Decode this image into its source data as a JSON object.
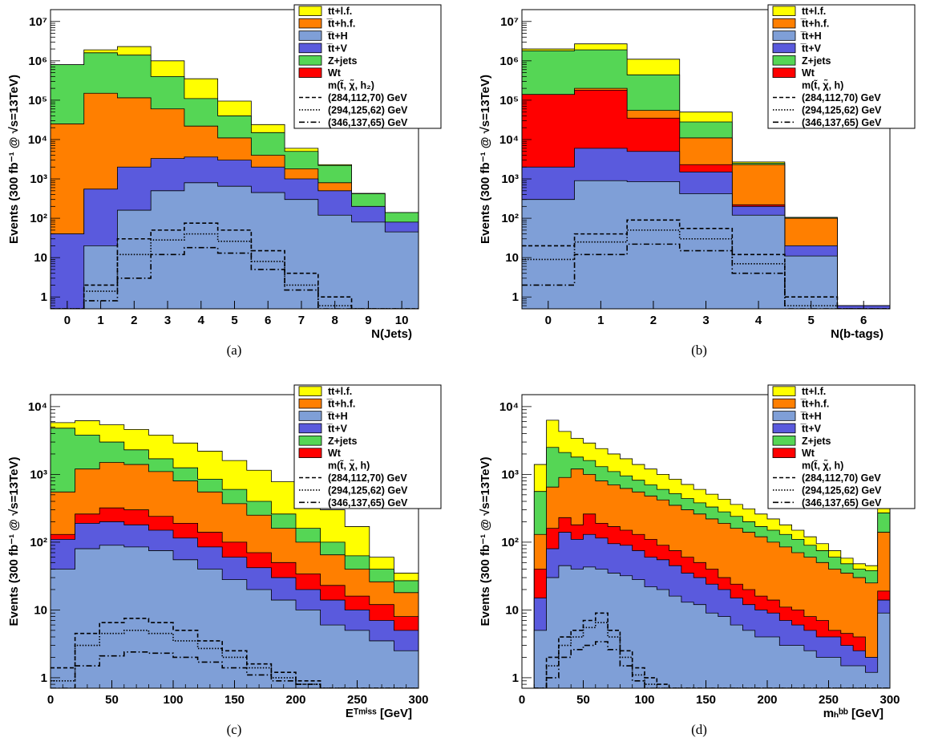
{
  "colors": {
    "tt_lf": "#ffff00",
    "tt_hf": "#ff7f00",
    "ttH": "#7f9fd7",
    "ttV": "#5a5add",
    "Zjets": "#55d655",
    "Wt": "#ff0000"
  },
  "chart_data": [
    {
      "id": "a",
      "type": "bar",
      "caption": "(a)",
      "title": "",
      "xlabel": "N(Jets)",
      "ylabel": "Events (300 fb⁻¹ @ √s=13TeV)",
      "ylog": true,
      "xlim": [
        -0.5,
        10.5
      ],
      "ylim": [
        0.5,
        20000000
      ],
      "xticks": [
        0,
        1,
        2,
        3,
        4,
        5,
        6,
        7,
        8,
        9,
        10
      ],
      "xtick_labels": [
        "0",
        "1",
        "2",
        "3",
        "4",
        "5",
        "6",
        "7",
        "8",
        "9",
        "10"
      ],
      "yticks": [
        1,
        10,
        100,
        1000,
        10000,
        100000,
        1000000,
        10000000
      ],
      "ytick_labels": [
        "1",
        "10",
        "10²",
        "10³",
        "10⁴",
        "10⁵",
        "10⁶",
        "10⁷"
      ],
      "bin_edges": [
        -0.5,
        0.5,
        1.5,
        2.5,
        3.5,
        4.5,
        5.5,
        6.5,
        7.5,
        8.5,
        9.5,
        10.5
      ],
      "stack_cumulative": {
        "Wt": [
          40,
          550,
          1400,
          2500,
          3000,
          2000,
          1100,
          550,
          200,
          80,
          35
        ],
        "ttV": [
          40,
          550,
          2000,
          3300,
          3600,
          3000,
          2000,
          1000,
          500,
          200,
          80
        ],
        "ttH": [
          0,
          20,
          160,
          500,
          800,
          650,
          450,
          300,
          120,
          80,
          45
        ],
        "Zjets": [
          800000,
          1600000,
          1400000,
          400000,
          110000,
          40000,
          15000,
          5000,
          2200,
          420,
          140
        ],
        "tt_hf": [
          25000,
          150000,
          115000,
          60000,
          22000,
          11000,
          4000,
          1800,
          800,
          180,
          70
        ],
        "tt_lf": [
          800000,
          1900000,
          2300000,
          1000000,
          350000,
          95000,
          24000,
          6000,
          2300,
          430,
          140
        ]
      },
      "signal_lines": [
        {
          "name": "(284,112,70) GeV",
          "style": "dashed",
          "values": [
            0.4,
            2,
            30,
            50,
            75,
            50,
            15,
            4,
            1,
            0.3,
            0.3
          ]
        },
        {
          "name": "(294,125,62) GeV",
          "style": "dotted",
          "values": [
            0.3,
            1.4,
            12,
            28,
            40,
            26,
            8,
            2,
            0.6,
            0.2,
            0.2
          ]
        },
        {
          "name": "(346,137,65) GeV",
          "style": "dashdot",
          "values": [
            0.2,
            0.8,
            3,
            12,
            18,
            13,
            5,
            1.5,
            0.4,
            0.2,
            0.2
          ]
        }
      ],
      "legend": {
        "position": "top-right",
        "entries": [
          "tt+l.f.",
          "t̅t+h.f.",
          "t̅t+H",
          "t̅t+V",
          "Z+jets",
          "Wt"
        ],
        "signal_header": "m(t̃, χ̃, h₂)",
        "signal_entries": [
          "(284,112,70) GeV",
          "(294,125,62) GeV",
          "(346,137,65) GeV"
        ]
      }
    },
    {
      "id": "b",
      "type": "bar",
      "caption": "(b)",
      "title": "",
      "xlabel": "N(b-tags)",
      "ylabel": "Events (300 fb⁻¹ @ √s=13TeV)",
      "ylog": true,
      "xlim": [
        -0.5,
        6.5
      ],
      "ylim": [
        0.5,
        20000000
      ],
      "xticks": [
        0,
        1,
        2,
        3,
        4,
        5,
        6
      ],
      "xtick_labels": [
        "0",
        "1",
        "2",
        "3",
        "4",
        "5",
        "6"
      ],
      "yticks": [
        1,
        10,
        100,
        1000,
        10000,
        100000,
        1000000,
        10000000
      ],
      "ytick_labels": [
        "1",
        "10",
        "10²",
        "10³",
        "10⁴",
        "10⁵",
        "10⁶",
        "10⁷"
      ],
      "bin_edges": [
        -0.5,
        0.5,
        1.5,
        2.5,
        3.5,
        4.5,
        5.5,
        6.5
      ],
      "stack_cumulative": {
        "ttH": [
          300,
          900,
          850,
          420,
          120,
          11,
          0.5
        ],
        "ttV": [
          2000,
          6000,
          5000,
          1500,
          200,
          20,
          0.6
        ],
        "Wt": [
          140000,
          180000,
          35000,
          2300,
          220,
          20,
          0.6
        ],
        "tt_hf": [
          140000,
          200000,
          55000,
          11000,
          2300,
          100,
          0.6
        ],
        "Zjets": [
          1800000,
          1900000,
          440000,
          28000,
          2500,
          105,
          0.6
        ],
        "tt_lf": [
          2000000,
          2700000,
          1100000,
          50000,
          2700,
          105,
          0.6
        ]
      },
      "signal_lines": [
        {
          "name": "(284,112,70) GeV",
          "style": "dashed",
          "values": [
            20,
            40,
            90,
            55,
            12,
            1,
            0.3
          ]
        },
        {
          "name": "(294,125,62) GeV",
          "style": "dotted",
          "values": [
            9,
            25,
            50,
            30,
            7,
            0.6,
            0.3
          ]
        },
        {
          "name": "(346,137,65) GeV",
          "style": "dashdot",
          "values": [
            2,
            12,
            22,
            15,
            4,
            0.3,
            0.3
          ]
        }
      ],
      "legend": {
        "position": "top-right",
        "entries": [
          "tt+l.f.",
          "t̅t+h.f.",
          "t̅t+H",
          "t̅t+V",
          "Z+jets",
          "Wt"
        ],
        "signal_header": "m(t̃, χ̃, h)",
        "signal_entries": [
          "(284,112,70) GeV",
          "(294,125,62) GeV",
          "(346,137,65) GeV"
        ]
      }
    },
    {
      "id": "c",
      "type": "bar",
      "caption": "(c)",
      "title": "",
      "xlabel": "Eᵀᵐⁱˢˢ [GeV]",
      "ylabel": "Events (300 fb⁻¹ @ √s=13TeV)",
      "ylog": true,
      "xlim": [
        0,
        300
      ],
      "ylim": [
        0.7,
        15000
      ],
      "xticks": [
        0,
        50,
        100,
        150,
        200,
        250,
        300
      ],
      "xtick_labels": [
        "0",
        "50",
        "100",
        "150",
        "200",
        "250",
        "300"
      ],
      "yticks": [
        1,
        10,
        100,
        1000,
        10000
      ],
      "ytick_labels": [
        "1",
        "10",
        "10²",
        "10³",
        "10⁴"
      ],
      "bin_edges": [
        0,
        20,
        40,
        60,
        80,
        100,
        120,
        140,
        160,
        180,
        200,
        220,
        240,
        260,
        280,
        300
      ],
      "stack_cumulative": {
        "ttH": [
          40,
          80,
          90,
          85,
          75,
          55,
          40,
          28,
          20,
          14,
          10,
          6,
          5,
          3.5,
          2.5
        ],
        "ttV": [
          110,
          190,
          200,
          180,
          150,
          115,
          85,
          60,
          42,
          30,
          20,
          14,
          10,
          7,
          5
        ],
        "Wt": [
          130,
          260,
          320,
          300,
          240,
          190,
          140,
          100,
          70,
          50,
          34,
          23,
          16,
          12,
          8
        ],
        "tt_hf": [
          550,
          1200,
          1500,
          1400,
          1100,
          800,
          550,
          370,
          250,
          160,
          100,
          65,
          40,
          26,
          18
        ],
        "Zjets": [
          4800,
          3800,
          3000,
          2300,
          1700,
          1250,
          850,
          600,
          400,
          260,
          160,
          100,
          63,
          40,
          27
        ],
        "tt_lf": [
          5800,
          6200,
          5400,
          4600,
          3800,
          2900,
          2200,
          1600,
          1150,
          780,
          500,
          300,
          170,
          60,
          35
        ]
      },
      "signal_lines": [
        {
          "name": "(284,112,70) GeV",
          "style": "dashed",
          "values": [
            1.4,
            4.5,
            6.5,
            7.5,
            6.5,
            5,
            3.5,
            2.5,
            1.6,
            1.2,
            0.9,
            0.7,
            0.6,
            0.6,
            0.6
          ]
        },
        {
          "name": "(294,125,62) GeV",
          "style": "dotted",
          "values": [
            0.9,
            3,
            4.5,
            5,
            4.5,
            3.5,
            2.7,
            2,
            1.4,
            1,
            0.8,
            0.6,
            0.6,
            0.6,
            0.6
          ]
        },
        {
          "name": "(346,137,65) GeV",
          "style": "dashdot",
          "values": [
            0.5,
            1.5,
            2.1,
            2.4,
            2.3,
            2,
            1.7,
            1.4,
            1.1,
            0.9,
            0.8,
            0.6,
            0.6,
            0.6,
            0.6
          ]
        }
      ],
      "legend": {
        "position": "top-right",
        "entries": [
          "tt+l.f.",
          "t̅t+h.f.",
          "t̅t+H",
          "t̅t+V",
          "Z+jets",
          "Wt"
        ],
        "signal_header": "m(t̃, χ̃, h)",
        "signal_entries": [
          "(284,112,70) GeV",
          "(294,125,62) GeV",
          "(346,137,65) GeV"
        ]
      }
    },
    {
      "id": "d",
      "type": "bar",
      "caption": "(d)",
      "title": "",
      "xlabel": "mₕᵇᵇ [GeV]",
      "ylabel": "Events (300 fb⁻¹ @ √s=13TeV)",
      "ylog": true,
      "xlim": [
        0,
        300
      ],
      "ylim": [
        0.7,
        15000
      ],
      "xticks": [
        0,
        50,
        100,
        150,
        200,
        250,
        300
      ],
      "xtick_labels": [
        "0",
        "50",
        "100",
        "150",
        "200",
        "250",
        "300"
      ],
      "yticks": [
        1,
        10,
        100,
        1000,
        10000
      ],
      "ytick_labels": [
        "1",
        "10",
        "10²",
        "10³",
        "10⁴"
      ],
      "bin_edges": [
        10,
        20,
        30,
        40,
        50,
        60,
        70,
        80,
        90,
        100,
        110,
        120,
        130,
        140,
        150,
        160,
        170,
        180,
        190,
        200,
        210,
        220,
        230,
        240,
        250,
        260,
        270,
        280,
        290,
        300
      ],
      "stack_cumulative": {
        "ttH": [
          5,
          30,
          45,
          40,
          43,
          40,
          35,
          32,
          28,
          22,
          20,
          16,
          13,
          12,
          9,
          8,
          6,
          5,
          4,
          4,
          3,
          3,
          2.5,
          2,
          2,
          1.5,
          1.5,
          1.2,
          9
        ],
        "ttV": [
          15,
          80,
          140,
          110,
          130,
          115,
          95,
          90,
          75,
          60,
          55,
          45,
          35,
          30,
          24,
          20,
          15,
          12,
          10,
          9,
          7,
          6,
          5,
          4,
          4,
          3,
          2.5,
          2,
          14
        ],
        "Wt": [
          40,
          160,
          230,
          180,
          260,
          190,
          170,
          150,
          130,
          110,
          90,
          75,
          60,
          50,
          40,
          30,
          24,
          20,
          16,
          14,
          11,
          10,
          8,
          7,
          5,
          4.5,
          4,
          2,
          19
        ],
        "tt_hf": [
          130,
          650,
          900,
          1200,
          1000,
          800,
          700,
          620,
          550,
          480,
          420,
          350,
          300,
          260,
          220,
          190,
          160,
          140,
          120,
          100,
          85,
          70,
          60,
          50,
          40,
          35,
          30,
          25,
          140
        ],
        "Zjets": [
          560,
          2500,
          2100,
          1800,
          1600,
          1300,
          1100,
          950,
          820,
          700,
          600,
          520,
          440,
          380,
          330,
          280,
          240,
          200,
          170,
          150,
          130,
          110,
          90,
          75,
          60,
          48,
          40,
          38,
          270
        ],
        "tt_lf": [
          1400,
          6300,
          4300,
          3400,
          2900,
          2400,
          2000,
          1700,
          1400,
          1200,
          1000,
          850,
          710,
          600,
          510,
          430,
          360,
          310,
          260,
          220,
          180,
          150,
          120,
          95,
          75,
          58,
          48,
          45,
          380
        ]
      },
      "signal_lines": [
        {
          "name": "(284,112,70) GeV",
          "style": "dashed",
          "values": [
            0.6,
            2,
            4,
            5,
            7,
            9,
            5,
            2.5,
            1.4,
            1,
            0.8,
            0.7,
            0.6,
            0.6,
            0.6,
            0.6,
            0.6,
            0.6,
            0.6,
            0.6,
            0.6,
            0.6,
            0.6,
            0.6,
            0.6,
            0.6,
            0.6,
            0.6,
            0.6
          ]
        },
        {
          "name": "(294,125,62) GeV",
          "style": "dotted",
          "values": [
            0.6,
            1.5,
            3,
            4,
            5.5,
            6.5,
            4,
            2,
            1.1,
            0.8,
            0.7,
            0.6,
            0.6,
            0.6,
            0.6,
            0.6,
            0.6,
            0.6,
            0.6,
            0.6,
            0.6,
            0.6,
            0.6,
            0.6,
            0.6,
            0.6,
            0.6,
            0.6,
            0.6
          ]
        },
        {
          "name": "(346,137,65) GeV",
          "style": "dashdot",
          "values": [
            0.6,
            1,
            2,
            2.6,
            3,
            3.4,
            2.6,
            1.5,
            0.9,
            0.7,
            0.6,
            0.6,
            0.6,
            0.6,
            0.6,
            0.6,
            0.6,
            0.6,
            0.6,
            0.6,
            0.6,
            0.6,
            0.6,
            0.6,
            0.6,
            0.6,
            0.6,
            0.6,
            0.6
          ]
        }
      ],
      "legend": {
        "position": "top-right",
        "entries": [
          "tt+l.f.",
          "t̅t+h.f.",
          "t̅t+H",
          "t̅t+V",
          "Z+jets",
          "Wt"
        ],
        "signal_header": "m(t̃, χ̃, h)",
        "signal_entries": [
          "(284,112,70) GeV",
          "(294,125,62) GeV",
          "(346,137,65) GeV"
        ]
      }
    }
  ]
}
